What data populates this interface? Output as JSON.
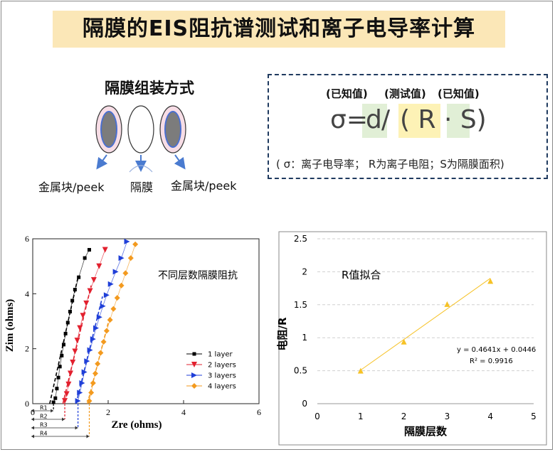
{
  "title": "隔膜的EIS阻抗谱测试和离子电导率计算",
  "assembly": {
    "title": "隔膜组装方式",
    "label_left": "金属块/peek",
    "label_center": "隔膜",
    "label_right": "金属块/peek"
  },
  "formula": {
    "known_1": "(已知值)",
    "tested": "(测试值)",
    "known_2": "(已知值)",
    "sigma_eq": "σ=",
    "d": "d",
    "slash": " /",
    "r_s": "( R · S)",
    "note": "( σ：离子电导率；  R为离子电阻；S为隔膜面积)"
  },
  "colors": {
    "title_bg": "#fbe7b7",
    "series_1": "#000000",
    "series_2": "#e2202e",
    "series_3": "#1f3fd8",
    "series_4": "#f39a1e",
    "fit": "#f6c226"
  },
  "chart_data": [
    {
      "type": "line",
      "annotation": "不同层数隔膜阻抗",
      "xlabel": "Zre (ohms)",
      "ylabel": "Zim (ohms)",
      "xlim": [
        0,
        6
      ],
      "ylim": [
        0,
        6
      ],
      "x_ticks": [
        "0",
        "2",
        "4",
        "6"
      ],
      "y_ticks": [
        "0",
        "2",
        "4",
        "6"
      ],
      "legend_position": "right",
      "r_labels": [
        "R1",
        "R2",
        "R3",
        "R4"
      ],
      "r_values": [
        0.55,
        0.85,
        1.2,
        1.5
      ],
      "series": [
        {
          "name": "1 layer",
          "marker": "square",
          "color": "#000000",
          "points": [
            [
              0.55,
              0.05
            ],
            [
              0.6,
              0.2
            ],
            [
              0.64,
              0.55
            ],
            [
              0.68,
              0.95
            ],
            [
              0.72,
              1.35
            ],
            [
              0.77,
              1.75
            ],
            [
              0.82,
              2.15
            ],
            [
              0.87,
              2.55
            ],
            [
              0.93,
              2.95
            ],
            [
              0.99,
              3.35
            ],
            [
              1.05,
              3.75
            ],
            [
              1.12,
              4.15
            ],
            [
              1.22,
              4.6
            ],
            [
              1.38,
              5.3
            ],
            [
              1.5,
              5.6
            ]
          ],
          "fit": [
            [
              0.45,
              0
            ],
            [
              1.2,
              4.6
            ]
          ]
        },
        {
          "name": "2 layers",
          "marker": "triangle-down",
          "color": "#e2202e",
          "points": [
            [
              0.85,
              0.1
            ],
            [
              0.9,
              0.35
            ],
            [
              0.95,
              0.7
            ],
            [
              1.0,
              1.1
            ],
            [
              1.06,
              1.5
            ],
            [
              1.12,
              1.9
            ],
            [
              1.18,
              2.3
            ],
            [
              1.25,
              2.75
            ],
            [
              1.33,
              3.2
            ],
            [
              1.42,
              3.65
            ],
            [
              1.52,
              4.1
            ],
            [
              1.62,
              4.5
            ],
            [
              1.76,
              5.0
            ],
            [
              1.92,
              5.6
            ]
          ],
          "fit": [
            [
              0.8,
              0
            ],
            [
              1.55,
              4.3
            ]
          ]
        },
        {
          "name": "3 layers",
          "marker": "triangle-right",
          "color": "#1f3fd8",
          "points": [
            [
              1.2,
              0.1
            ],
            [
              1.25,
              0.4
            ],
            [
              1.31,
              0.75
            ],
            [
              1.37,
              1.15
            ],
            [
              1.44,
              1.55
            ],
            [
              1.52,
              1.95
            ],
            [
              1.6,
              2.35
            ],
            [
              1.68,
              2.75
            ],
            [
              1.77,
              3.15
            ],
            [
              1.86,
              3.55
            ],
            [
              1.96,
              3.95
            ],
            [
              2.07,
              4.35
            ],
            [
              2.2,
              4.8
            ],
            [
              2.35,
              5.3
            ],
            [
              2.5,
              5.9
            ]
          ],
          "fit": [
            [
              1.15,
              0
            ],
            [
              1.85,
              3.9
            ]
          ]
        },
        {
          "name": "4 layers",
          "marker": "diamond",
          "color": "#f39a1e",
          "points": [
            [
              1.5,
              0.1
            ],
            [
              1.55,
              0.4
            ],
            [
              1.6,
              0.75
            ],
            [
              1.66,
              1.1
            ],
            [
              1.72,
              1.45
            ],
            [
              1.8,
              1.85
            ],
            [
              1.88,
              2.25
            ],
            [
              1.96,
              2.65
            ],
            [
              2.05,
              3.05
            ],
            [
              2.14,
              3.45
            ],
            [
              2.24,
              3.85
            ],
            [
              2.35,
              4.3
            ],
            [
              2.46,
              4.75
            ],
            [
              2.6,
              5.3
            ],
            [
              2.72,
              5.8
            ]
          ],
          "fit": [
            [
              1.45,
              0
            ],
            [
              2.05,
              3.2
            ]
          ]
        }
      ]
    },
    {
      "type": "scatter",
      "annotation": "R值拟合",
      "xlabel": "隔膜层数",
      "ylabel": "电阻/R",
      "xlim": [
        0,
        5
      ],
      "ylim": [
        0,
        2.5
      ],
      "x_ticks": [
        "0",
        "1",
        "2",
        "3",
        "4",
        "5"
      ],
      "y_ticks": [
        "0",
        "0.5",
        "1",
        "1.5",
        "2",
        "2.5"
      ],
      "grid": true,
      "points": [
        [
          1,
          0.5
        ],
        [
          2,
          0.94
        ],
        [
          3,
          1.51
        ],
        [
          4,
          1.86
        ]
      ],
      "fit": {
        "slope": 0.4641,
        "intercept": 0.0446,
        "x_range": [
          1,
          4
        ]
      },
      "equation": "y = 0.4641x + 0.0446",
      "r2": "R² = 0.9916"
    }
  ]
}
